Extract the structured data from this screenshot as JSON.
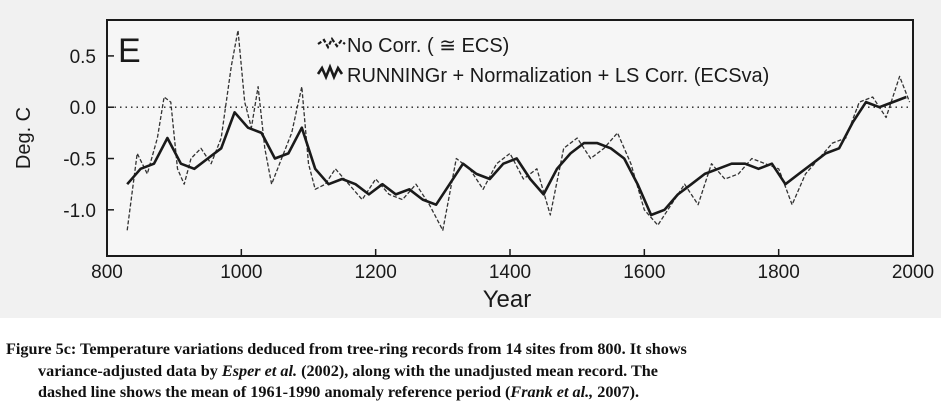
{
  "chart_data": {
    "type": "line",
    "panel_label": "E",
    "ylabel": "Deg. C",
    "xlabel": "Year",
    "xlim": [
      800,
      2000
    ],
    "ylim": [
      -1.45,
      0.85
    ],
    "xticks": [
      800,
      1000,
      1200,
      1400,
      1600,
      1800,
      2000
    ],
    "yticks": [
      0.5,
      0.0,
      -0.5,
      -1.0
    ],
    "ytick_labels": [
      "0.5",
      "0.0",
      "-0.5",
      "-1.0"
    ],
    "reference_line": {
      "y": 0.0,
      "style": "dotted"
    },
    "legend_position": "top-center",
    "series": [
      {
        "name": "No Corr. ( ≅ ECS)",
        "style": "dashed",
        "x": [
          830,
          845,
          860,
          875,
          885,
          895,
          905,
          915,
          925,
          940,
          955,
          970,
          985,
          995,
          1005,
          1015,
          1025,
          1035,
          1045,
          1060,
          1075,
          1090,
          1100,
          1110,
          1125,
          1140,
          1160,
          1180,
          1200,
          1220,
          1240,
          1260,
          1280,
          1300,
          1320,
          1340,
          1360,
          1380,
          1400,
          1420,
          1440,
          1460,
          1480,
          1500,
          1520,
          1540,
          1560,
          1580,
          1600,
          1620,
          1640,
          1660,
          1680,
          1700,
          1720,
          1740,
          1760,
          1780,
          1800,
          1820,
          1840,
          1860,
          1880,
          1900,
          1920,
          1940,
          1960,
          1980,
          1995
        ],
        "values": [
          -1.2,
          -0.45,
          -0.65,
          -0.3,
          0.1,
          0.05,
          -0.6,
          -0.75,
          -0.5,
          -0.4,
          -0.55,
          -0.3,
          0.4,
          0.75,
          0.05,
          -0.2,
          0.2,
          -0.4,
          -0.75,
          -0.5,
          -0.25,
          0.2,
          -0.55,
          -0.8,
          -0.75,
          -0.6,
          -0.75,
          -0.9,
          -0.7,
          -0.85,
          -0.9,
          -0.75,
          -0.95,
          -1.2,
          -0.5,
          -0.6,
          -0.8,
          -0.55,
          -0.45,
          -0.7,
          -0.6,
          -1.05,
          -0.4,
          -0.3,
          -0.5,
          -0.4,
          -0.25,
          -0.55,
          -1.0,
          -1.15,
          -0.95,
          -0.75,
          -0.95,
          -0.55,
          -0.7,
          -0.65,
          -0.5,
          -0.55,
          -0.6,
          -0.95,
          -0.65,
          -0.5,
          -0.35,
          -0.3,
          0.05,
          0.1,
          -0.1,
          0.3,
          0.05
        ]
      },
      {
        "name": "RUNNINGr + Normalization + LS Corr. (ECSva)",
        "style": "solid",
        "x": [
          830,
          850,
          870,
          890,
          910,
          930,
          950,
          970,
          990,
          1010,
          1030,
          1050,
          1070,
          1090,
          1110,
          1130,
          1150,
          1170,
          1190,
          1210,
          1230,
          1250,
          1270,
          1290,
          1310,
          1330,
          1350,
          1370,
          1390,
          1410,
          1430,
          1450,
          1470,
          1490,
          1510,
          1530,
          1550,
          1570,
          1590,
          1610,
          1630,
          1650,
          1670,
          1690,
          1710,
          1730,
          1750,
          1770,
          1790,
          1810,
          1830,
          1850,
          1870,
          1890,
          1910,
          1930,
          1950,
          1970,
          1990
        ],
        "values": [
          -0.75,
          -0.6,
          -0.55,
          -0.3,
          -0.55,
          -0.6,
          -0.5,
          -0.4,
          -0.05,
          -0.2,
          -0.25,
          -0.5,
          -0.45,
          -0.2,
          -0.6,
          -0.75,
          -0.7,
          -0.75,
          -0.85,
          -0.75,
          -0.85,
          -0.8,
          -0.9,
          -0.95,
          -0.75,
          -0.55,
          -0.65,
          -0.7,
          -0.55,
          -0.5,
          -0.7,
          -0.85,
          -0.6,
          -0.45,
          -0.35,
          -0.35,
          -0.4,
          -0.5,
          -0.75,
          -1.05,
          -1.0,
          -0.85,
          -0.75,
          -0.65,
          -0.6,
          -0.55,
          -0.55,
          -0.6,
          -0.55,
          -0.75,
          -0.65,
          -0.55,
          -0.45,
          -0.4,
          -0.15,
          0.05,
          0.0,
          0.05,
          0.1
        ]
      }
    ]
  },
  "caption": {
    "lead": "Figure 5c:",
    "line1_text": " Temperature variations deduced from tree-ring records from 14 sites from 800. It shows",
    "line2_a": "variance-adjusted data by ",
    "line2_cite": "Esper et al.",
    "line2_b": " (2002), along with the unadjusted mean record. The",
    "line3_a": "dashed line shows the mean of 1961-1990 anomaly reference period (",
    "line3_cite": "Frank et al.,",
    "line3_b": " 2007)."
  }
}
